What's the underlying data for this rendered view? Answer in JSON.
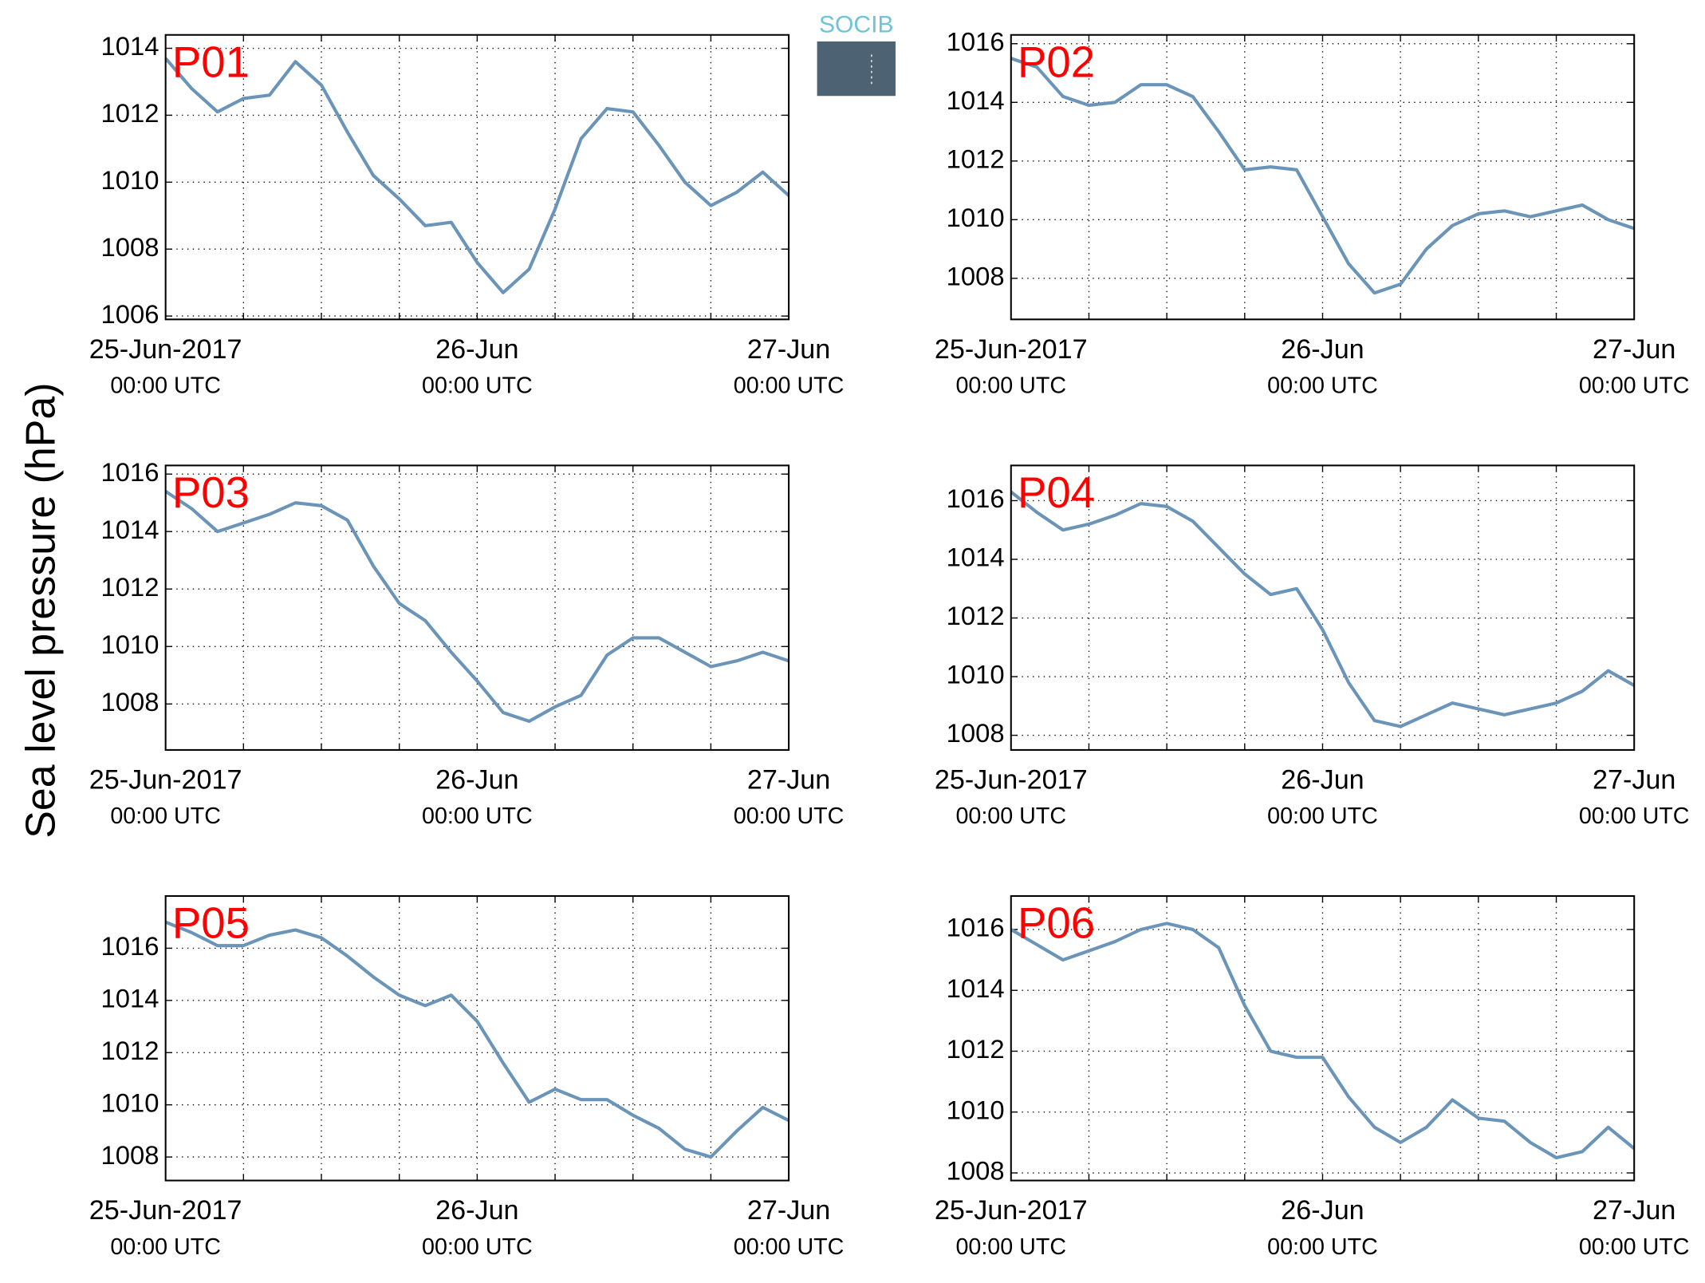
{
  "ylabel": "Sea level pressure (hPa)",
  "logo": "SOCIB",
  "chart_data": [
    {
      "type": "line",
      "title": "P01",
      "color": "#6a94b8",
      "grid": true,
      "x": [
        "2017-06-25 00:00",
        "2017-06-25 02:00",
        "2017-06-25 04:00",
        "2017-06-25 06:00",
        "2017-06-25 08:00",
        "2017-06-25 10:00",
        "2017-06-25 12:00",
        "2017-06-25 14:00",
        "2017-06-25 16:00",
        "2017-06-25 18:00",
        "2017-06-25 20:00",
        "2017-06-25 22:00",
        "2017-06-26 00:00",
        "2017-06-26 02:00",
        "2017-06-26 04:00",
        "2017-06-26 06:00",
        "2017-06-26 08:00",
        "2017-06-26 10:00",
        "2017-06-26 12:00",
        "2017-06-26 14:00",
        "2017-06-26 16:00",
        "2017-06-26 18:00",
        "2017-06-26 20:00",
        "2017-06-26 22:00",
        "2017-06-27 00:00"
      ],
      "values": [
        1013.7,
        1012.8,
        1012.1,
        1012.5,
        1012.6,
        1013.6,
        1012.9,
        1011.5,
        1010.2,
        1009.5,
        1008.7,
        1008.8,
        1007.6,
        1006.7,
        1007.4,
        1009.2,
        1011.3,
        1012.2,
        1012.1,
        1011.1,
        1010.0,
        1009.3,
        1009.7,
        1010.3,
        1009.6
      ],
      "xlim": [
        "2017-06-25 00:00",
        "2017-06-27 00:00"
      ],
      "xticks": [
        {
          "value": "2017-06-25 00:00",
          "label": [
            "25-Jun-2017",
            "00:00 UTC"
          ]
        },
        {
          "value": "2017-06-26 00:00",
          "label": [
            "26-Jun",
            "00:00 UTC"
          ]
        },
        {
          "value": "2017-06-27 00:00",
          "label": [
            "27-Jun",
            "00:00 UTC"
          ]
        }
      ],
      "xminorticks": [
        "2017-06-25 06:00",
        "2017-06-25 12:00",
        "2017-06-25 18:00",
        "2017-06-26 06:00",
        "2017-06-26 12:00",
        "2017-06-26 18:00"
      ],
      "ylim": [
        1005.9,
        1014.4
      ],
      "yticks": [
        1006,
        1008,
        1010,
        1012,
        1014
      ]
    },
    {
      "type": "line",
      "title": "P02",
      "color": "#6a94b8",
      "grid": true,
      "x": [
        "2017-06-25 00:00",
        "2017-06-25 02:00",
        "2017-06-25 04:00",
        "2017-06-25 06:00",
        "2017-06-25 08:00",
        "2017-06-25 10:00",
        "2017-06-25 12:00",
        "2017-06-25 14:00",
        "2017-06-25 16:00",
        "2017-06-25 18:00",
        "2017-06-25 20:00",
        "2017-06-25 22:00",
        "2017-06-26 00:00",
        "2017-06-26 02:00",
        "2017-06-26 04:00",
        "2017-06-26 06:00",
        "2017-06-26 08:00",
        "2017-06-26 10:00",
        "2017-06-26 12:00",
        "2017-06-26 14:00",
        "2017-06-26 16:00",
        "2017-06-26 18:00",
        "2017-06-26 20:00",
        "2017-06-26 22:00",
        "2017-06-27 00:00"
      ],
      "values": [
        1015.5,
        1015.2,
        1014.2,
        1013.9,
        1014.0,
        1014.6,
        1014.6,
        1014.2,
        1013.0,
        1011.7,
        1011.8,
        1011.7,
        1010.1,
        1008.5,
        1007.5,
        1007.8,
        1009.0,
        1009.8,
        1010.2,
        1010.3,
        1010.1,
        1010.3,
        1010.5,
        1010.0,
        1009.7
      ],
      "xlim": [
        "2017-06-25 00:00",
        "2017-06-27 00:00"
      ],
      "xticks": [
        {
          "value": "2017-06-25 00:00",
          "label": [
            "25-Jun-2017",
            "00:00 UTC"
          ]
        },
        {
          "value": "2017-06-26 00:00",
          "label": [
            "26-Jun",
            "00:00 UTC"
          ]
        },
        {
          "value": "2017-06-27 00:00",
          "label": [
            "27-Jun",
            "00:00 UTC"
          ]
        }
      ],
      "xminorticks": [
        "2017-06-25 06:00",
        "2017-06-25 12:00",
        "2017-06-25 18:00",
        "2017-06-26 06:00",
        "2017-06-26 12:00",
        "2017-06-26 18:00"
      ],
      "ylim": [
        1006.6,
        1016.3
      ],
      "yticks": [
        1008,
        1010,
        1012,
        1014,
        1016
      ]
    },
    {
      "type": "line",
      "title": "P03",
      "color": "#6a94b8",
      "grid": true,
      "x": [
        "2017-06-25 00:00",
        "2017-06-25 02:00",
        "2017-06-25 04:00",
        "2017-06-25 06:00",
        "2017-06-25 08:00",
        "2017-06-25 10:00",
        "2017-06-25 12:00",
        "2017-06-25 14:00",
        "2017-06-25 16:00",
        "2017-06-25 18:00",
        "2017-06-25 20:00",
        "2017-06-25 22:00",
        "2017-06-26 00:00",
        "2017-06-26 02:00",
        "2017-06-26 04:00",
        "2017-06-26 06:00",
        "2017-06-26 08:00",
        "2017-06-26 10:00",
        "2017-06-26 12:00",
        "2017-06-26 14:00",
        "2017-06-26 16:00",
        "2017-06-26 18:00",
        "2017-06-26 20:00",
        "2017-06-26 22:00",
        "2017-06-27 00:00"
      ],
      "values": [
        1015.4,
        1014.8,
        1014.0,
        1014.3,
        1014.6,
        1015.0,
        1014.9,
        1014.4,
        1012.8,
        1011.5,
        1010.9,
        1009.8,
        1008.8,
        1007.7,
        1007.4,
        1007.9,
        1008.3,
        1009.7,
        1010.3,
        1010.3,
        1009.8,
        1009.3,
        1009.5,
        1009.8,
        1009.5
      ],
      "xlim": [
        "2017-06-25 00:00",
        "2017-06-27 00:00"
      ],
      "xticks": [
        {
          "value": "2017-06-25 00:00",
          "label": [
            "25-Jun-2017",
            "00:00 UTC"
          ]
        },
        {
          "value": "2017-06-26 00:00",
          "label": [
            "26-Jun",
            "00:00 UTC"
          ]
        },
        {
          "value": "2017-06-27 00:00",
          "label": [
            "27-Jun",
            "00:00 UTC"
          ]
        }
      ],
      "xminorticks": [
        "2017-06-25 06:00",
        "2017-06-25 12:00",
        "2017-06-25 18:00",
        "2017-06-26 06:00",
        "2017-06-26 12:00",
        "2017-06-26 18:00"
      ],
      "ylim": [
        1006.4,
        1016.3
      ],
      "yticks": [
        1008,
        1010,
        1012,
        1014,
        1016
      ]
    },
    {
      "type": "line",
      "title": "P04",
      "color": "#6a94b8",
      "grid": true,
      "x": [
        "2017-06-25 00:00",
        "2017-06-25 02:00",
        "2017-06-25 04:00",
        "2017-06-25 06:00",
        "2017-06-25 08:00",
        "2017-06-25 10:00",
        "2017-06-25 12:00",
        "2017-06-25 14:00",
        "2017-06-25 16:00",
        "2017-06-25 18:00",
        "2017-06-25 20:00",
        "2017-06-25 22:00",
        "2017-06-26 00:00",
        "2017-06-26 02:00",
        "2017-06-26 04:00",
        "2017-06-26 06:00",
        "2017-06-26 08:00",
        "2017-06-26 10:00",
        "2017-06-26 12:00",
        "2017-06-26 14:00",
        "2017-06-26 16:00",
        "2017-06-26 18:00",
        "2017-06-26 20:00",
        "2017-06-26 22:00",
        "2017-06-27 00:00"
      ],
      "values": [
        1016.3,
        1015.6,
        1015.0,
        1015.2,
        1015.5,
        1015.9,
        1015.8,
        1015.3,
        1014.4,
        1013.5,
        1012.8,
        1013.0,
        1011.6,
        1009.8,
        1008.5,
        1008.3,
        1008.7,
        1009.1,
        1008.9,
        1008.7,
        1008.9,
        1009.1,
        1009.5,
        1010.2,
        1009.7
      ],
      "xlim": [
        "2017-06-25 00:00",
        "2017-06-27 00:00"
      ],
      "xticks": [
        {
          "value": "2017-06-25 00:00",
          "label": [
            "25-Jun-2017",
            "00:00 UTC"
          ]
        },
        {
          "value": "2017-06-26 00:00",
          "label": [
            "26-Jun",
            "00:00 UTC"
          ]
        },
        {
          "value": "2017-06-27 00:00",
          "label": [
            "27-Jun",
            "00:00 UTC"
          ]
        }
      ],
      "xminorticks": [
        "2017-06-25 06:00",
        "2017-06-25 12:00",
        "2017-06-25 18:00",
        "2017-06-26 06:00",
        "2017-06-26 12:00",
        "2017-06-26 18:00"
      ],
      "ylim": [
        1007.5,
        1017.2
      ],
      "yticks": [
        1008,
        1010,
        1012,
        1014,
        1016
      ]
    },
    {
      "type": "line",
      "title": "P05",
      "color": "#6a94b8",
      "grid": true,
      "x": [
        "2017-06-25 00:00",
        "2017-06-25 02:00",
        "2017-06-25 04:00",
        "2017-06-25 06:00",
        "2017-06-25 08:00",
        "2017-06-25 10:00",
        "2017-06-25 12:00",
        "2017-06-25 14:00",
        "2017-06-25 16:00",
        "2017-06-25 18:00",
        "2017-06-25 20:00",
        "2017-06-25 22:00",
        "2017-06-26 00:00",
        "2017-06-26 02:00",
        "2017-06-26 04:00",
        "2017-06-26 06:00",
        "2017-06-26 08:00",
        "2017-06-26 10:00",
        "2017-06-26 12:00",
        "2017-06-26 14:00",
        "2017-06-26 16:00",
        "2017-06-26 18:00",
        "2017-06-26 20:00",
        "2017-06-26 22:00",
        "2017-06-27 00:00"
      ],
      "values": [
        1017.0,
        1016.6,
        1016.1,
        1016.1,
        1016.5,
        1016.7,
        1016.4,
        1015.7,
        1014.9,
        1014.2,
        1013.8,
        1014.2,
        1013.2,
        1011.6,
        1010.1,
        1010.6,
        1010.2,
        1010.2,
        1009.6,
        1009.1,
        1008.3,
        1008.0,
        1009.0,
        1009.9,
        1009.4
      ],
      "xlim": [
        "2017-06-25 00:00",
        "2017-06-27 00:00"
      ],
      "xticks": [
        {
          "value": "2017-06-25 00:00",
          "label": [
            "25-Jun-2017",
            "00:00 UTC"
          ]
        },
        {
          "value": "2017-06-26 00:00",
          "label": [
            "26-Jun",
            "00:00 UTC"
          ]
        },
        {
          "value": "2017-06-27 00:00",
          "label": [
            "27-Jun",
            "00:00 UTC"
          ]
        }
      ],
      "xminorticks": [
        "2017-06-25 06:00",
        "2017-06-25 12:00",
        "2017-06-25 18:00",
        "2017-06-26 06:00",
        "2017-06-26 12:00",
        "2017-06-26 18:00"
      ],
      "ylim": [
        1007.1,
        1018.0
      ],
      "yticks": [
        1008,
        1010,
        1012,
        1014,
        1016
      ]
    },
    {
      "type": "line",
      "title": "P06",
      "color": "#6a94b8",
      "grid": true,
      "x": [
        "2017-06-25 00:00",
        "2017-06-25 02:00",
        "2017-06-25 04:00",
        "2017-06-25 06:00",
        "2017-06-25 08:00",
        "2017-06-25 10:00",
        "2017-06-25 12:00",
        "2017-06-25 14:00",
        "2017-06-25 16:00",
        "2017-06-25 18:00",
        "2017-06-25 20:00",
        "2017-06-25 22:00",
        "2017-06-26 00:00",
        "2017-06-26 02:00",
        "2017-06-26 04:00",
        "2017-06-26 06:00",
        "2017-06-26 08:00",
        "2017-06-26 10:00",
        "2017-06-26 12:00",
        "2017-06-26 14:00",
        "2017-06-26 16:00",
        "2017-06-26 18:00",
        "2017-06-26 20:00",
        "2017-06-26 22:00",
        "2017-06-27 00:00"
      ],
      "values": [
        1016.0,
        1015.5,
        1015.0,
        1015.3,
        1015.6,
        1016.0,
        1016.2,
        1016.0,
        1015.4,
        1013.5,
        1012.0,
        1011.8,
        1011.8,
        1010.5,
        1009.5,
        1009.0,
        1009.5,
        1010.4,
        1009.8,
        1009.7,
        1009.0,
        1008.5,
        1008.7,
        1009.5,
        1008.8
      ],
      "xlim": [
        "2017-06-25 00:00",
        "2017-06-27 00:00"
      ],
      "xticks": [
        {
          "value": "2017-06-25 00:00",
          "label": [
            "25-Jun-2017",
            "00:00 UTC"
          ]
        },
        {
          "value": "2017-06-26 00:00",
          "label": [
            "26-Jun",
            "00:00 UTC"
          ]
        },
        {
          "value": "2017-06-27 00:00",
          "label": [
            "27-Jun",
            "00:00 UTC"
          ]
        }
      ],
      "xminorticks": [
        "2017-06-25 06:00",
        "2017-06-25 12:00",
        "2017-06-25 18:00",
        "2017-06-26 06:00",
        "2017-06-26 12:00",
        "2017-06-26 18:00"
      ],
      "ylim": [
        1007.75,
        1017.1
      ],
      "yticks": [
        1008,
        1010,
        1012,
        1014,
        1016
      ]
    }
  ]
}
